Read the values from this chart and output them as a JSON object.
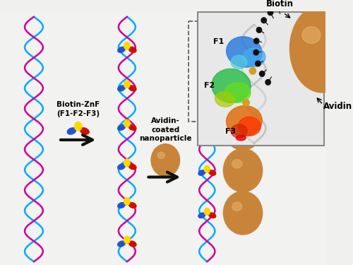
{
  "bg_color": "#f0f0ee",
  "cyan_helix_color": "#00AAFF",
  "magenta_helix_color": "#CC0099",
  "znf_yellow_color": "#FFD700",
  "znf_blue_color": "#2255CC",
  "znf_red_color": "#CC1100",
  "nanoparticle_color": "#C8853A",
  "nanoparticle_highlight": "#E8B870",
  "label1_text": "Biotin-ZnF\n(F1-F2-F3)",
  "label2_text": "Avidin-\ncoated\nnanoparticle",
  "inset_bg": "#e8e8e8",
  "inset_border": "#888888",
  "dashed_border": "#555555",
  "arrow_color": "#111111",
  "f1_color": "#1E90FF",
  "f2_color": "#32CD32",
  "f3_color": "#FF6600",
  "dna_gray": "#BBBBBB",
  "biotin_label": "Biotin",
  "avidin_label": "Avidin",
  "f1_label": "F1",
  "f2_label": "F2",
  "f3_label": "F3"
}
